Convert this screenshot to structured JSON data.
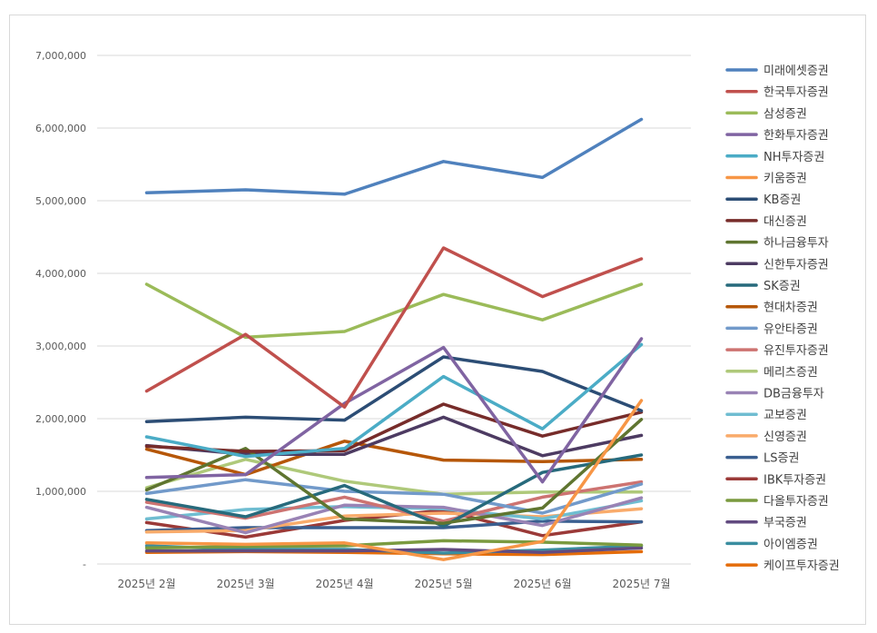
{
  "chart_data": {
    "type": "line",
    "categories": [
      "2025년 2월",
      "2025년 3월",
      "2025년 4월",
      "2025년 5월",
      "2025년 6월",
      "2025년 7월"
    ],
    "ylim": [
      0,
      7000000
    ],
    "yticks": [
      0,
      1000000,
      2000000,
      3000000,
      4000000,
      5000000,
      6000000,
      7000000
    ],
    "ytick_labels": [
      "-",
      "1,000,000",
      "2,000,000",
      "3,000,000",
      "4,000,000",
      "5,000,000",
      "6,000,000",
      "7,000,000"
    ],
    "grid": true,
    "legend_position": "right",
    "series": [
      {
        "name": "미래에셋증권",
        "color": "#4F81BD",
        "values": [
          5110000,
          5150000,
          5090000,
          5540000,
          5320000,
          6120000
        ]
      },
      {
        "name": "한국투자증권",
        "color": "#C0504D",
        "values": [
          2380000,
          3160000,
          2160000,
          4350000,
          3680000,
          4200000
        ]
      },
      {
        "name": "삼성증권",
        "color": "#9BBB59",
        "values": [
          3850000,
          3120000,
          3200000,
          3710000,
          3360000,
          3850000
        ]
      },
      {
        "name": "한화투자증권",
        "color": "#8064A2",
        "values": [
          1190000,
          1230000,
          2210000,
          2980000,
          1130000,
          3100000
        ]
      },
      {
        "name": "NH투자증권",
        "color": "#4BACC6",
        "values": [
          1750000,
          1480000,
          1590000,
          2580000,
          1860000,
          3020000
        ]
      },
      {
        "name": "키움증권",
        "color": "#F79646",
        "values": [
          290000,
          270000,
          290000,
          60000,
          310000,
          2250000
        ]
      },
      {
        "name": "KB증권",
        "color": "#2C4D75",
        "values": [
          1960000,
          2020000,
          1980000,
          2850000,
          2650000,
          2110000
        ]
      },
      {
        "name": "대신증권",
        "color": "#772C2A",
        "values": [
          1620000,
          1550000,
          1560000,
          2200000,
          1760000,
          2090000
        ]
      },
      {
        "name": "하나금융투자",
        "color": "#5F7530",
        "values": [
          1020000,
          1590000,
          620000,
          560000,
          770000,
          1990000
        ]
      },
      {
        "name": "신한투자증권",
        "color": "#4D3B62",
        "values": [
          1630000,
          1510000,
          1510000,
          2020000,
          1490000,
          1770000
        ]
      },
      {
        "name": "SK증권",
        "color": "#276A7C",
        "values": [
          890000,
          650000,
          1080000,
          520000,
          1260000,
          1500000
        ]
      },
      {
        "name": "현대차증권",
        "color": "#B65708",
        "values": [
          1580000,
          1230000,
          1690000,
          1430000,
          1410000,
          1440000
        ]
      },
      {
        "name": "유안타증권",
        "color": "#729ACA",
        "values": [
          970000,
          1160000,
          1000000,
          960000,
          700000,
          1100000
        ]
      },
      {
        "name": "유진투자증권",
        "color": "#CD7371",
        "values": [
          850000,
          630000,
          920000,
          590000,
          920000,
          1130000
        ]
      },
      {
        "name": "메리츠증권",
        "color": "#AFC97A",
        "values": [
          1050000,
          1440000,
          1140000,
          960000,
          990000,
          990000
        ]
      },
      {
        "name": "DB금융투자",
        "color": "#9983B5",
        "values": [
          780000,
          430000,
          810000,
          780000,
          530000,
          910000
        ]
      },
      {
        "name": "교보증권",
        "color": "#6FBDD1",
        "values": [
          620000,
          750000,
          790000,
          760000,
          620000,
          870000
        ]
      },
      {
        "name": "신영증권",
        "color": "#F9AB6B",
        "values": [
          440000,
          460000,
          660000,
          700000,
          650000,
          760000
        ]
      },
      {
        "name": "LS증권",
        "color": "#3A5F90",
        "values": [
          460000,
          500000,
          500000,
          500000,
          590000,
          580000
        ]
      },
      {
        "name": "IBK투자증권",
        "color": "#9B3A38",
        "values": [
          570000,
          370000,
          600000,
          740000,
          390000,
          580000
        ]
      },
      {
        "name": "다올투자증권",
        "color": "#7A9A3F",
        "values": [
          220000,
          240000,
          250000,
          320000,
          300000,
          260000
        ]
      },
      {
        "name": "부국증권",
        "color": "#624B80",
        "values": [
          180000,
          180000,
          180000,
          200000,
          160000,
          220000
        ]
      },
      {
        "name": "아이엠증권",
        "color": "#3A8DA0",
        "values": [
          250000,
          200000,
          200000,
          150000,
          190000,
          250000
        ]
      },
      {
        "name": "케이프투자증권",
        "color": "#E46C0A",
        "values": [
          160000,
          170000,
          160000,
          140000,
          130000,
          170000
        ]
      }
    ]
  }
}
